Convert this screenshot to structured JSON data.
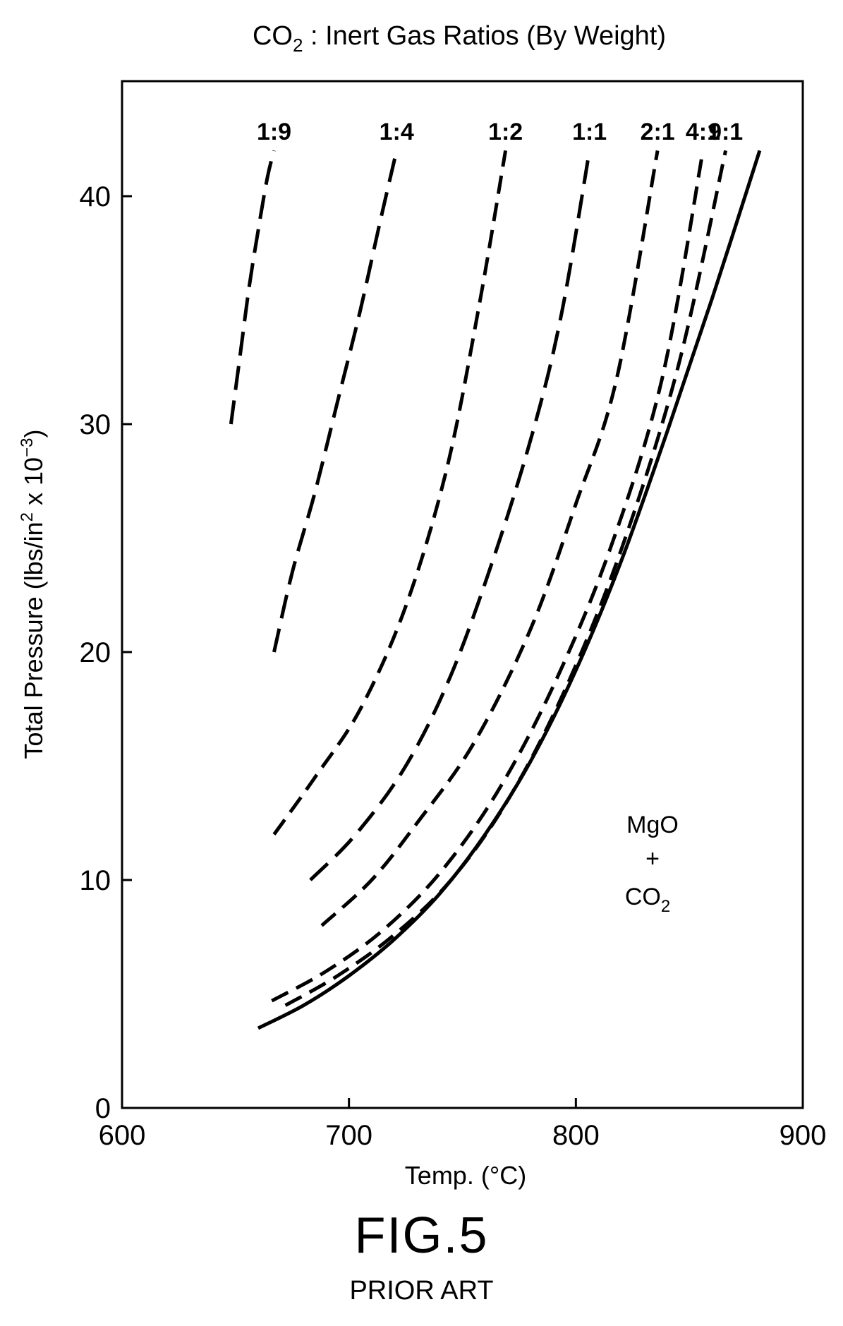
{
  "chart_data": {
    "type": "line",
    "title": "CO",
    "title_sub": "2",
    "title_rest": " : Inert Gas Ratios (By Weight)",
    "xlabel": "Temp. (°C)",
    "ylabel": "Total Pressure (lbs/in",
    "ylabel_sup1": "2",
    "ylabel_mid": " x 10",
    "ylabel_sup2": "−3",
    "ylabel_end": ")",
    "xlim": [
      600,
      900
    ],
    "ylim": [
      0,
      44
    ],
    "xticks": [
      600,
      700,
      800,
      900
    ],
    "xtick_labels": [
      "600",
      "700",
      "800",
      "900"
    ],
    "yticks": [
      0,
      10,
      20,
      30,
      40
    ],
    "ytick_labels": [
      "0",
      "10",
      "20",
      "30",
      "40"
    ],
    "grid": false,
    "series": [
      {
        "name": "1:9",
        "dash": "long",
        "x": [
          648,
          652,
          656,
          660,
          664,
          667
        ],
        "y": [
          30,
          33,
          36,
          38.5,
          40.8,
          42
        ]
      },
      {
        "name": "1:4",
        "dash": "long",
        "x": [
          667,
          675,
          685,
          695,
          705,
          714,
          721
        ],
        "y": [
          20,
          23.5,
          27,
          31,
          35,
          39,
          42
        ]
      },
      {
        "name": "1:2",
        "dash": "medium",
        "x": [
          667,
          685,
          705,
          725,
          743,
          757,
          769
        ],
        "y": [
          12,
          14.5,
          17.5,
          22,
          28,
          35,
          42
        ]
      },
      {
        "name": "1:1",
        "dash": "long",
        "x": [
          683,
          703,
          725,
          745,
          765,
          782,
          794,
          806
        ],
        "y": [
          10,
          12,
          15,
          19,
          24.5,
          30,
          35,
          42
        ]
      },
      {
        "name": "2:1",
        "dash": "medium",
        "x": [
          688,
          710,
          730,
          755,
          780,
          800,
          818,
          836
        ],
        "y": [
          8,
          10,
          12.5,
          16,
          21,
          26.5,
          32,
          42
        ]
      },
      {
        "name": "4:1",
        "dash": "medium",
        "x": [
          666,
          690,
          715,
          740,
          765,
          790,
          815,
          838,
          856
        ],
        "y": [
          4.7,
          6,
          7.8,
          10.3,
          13.8,
          18.5,
          24.5,
          32,
          42
        ]
      },
      {
        "name": "9:1",
        "dash": "medium",
        "x": [
          672,
          695,
          720,
          745,
          770,
          795,
          820,
          845,
          866
        ],
        "y": [
          4.5,
          5.8,
          7.6,
          10,
          13.5,
          18.3,
          24.5,
          32.5,
          42
        ]
      },
      {
        "name": "MgO + CO2",
        "dash": "solid",
        "x": [
          660,
          680,
          700,
          720,
          740,
          760,
          780,
          800,
          820,
          840,
          860,
          881
        ],
        "y": [
          3.5,
          4.5,
          5.8,
          7.4,
          9.4,
          12,
          15.2,
          19.2,
          24,
          29.6,
          35.5,
          42
        ]
      }
    ],
    "annotation": {
      "line1": "MgO",
      "line2": "+",
      "line3": "CO",
      "line3_sub": "2",
      "x": 830,
      "y": 10
    }
  },
  "figure": {
    "label": "FIG.5",
    "sublabel": "PRIOR ART"
  }
}
